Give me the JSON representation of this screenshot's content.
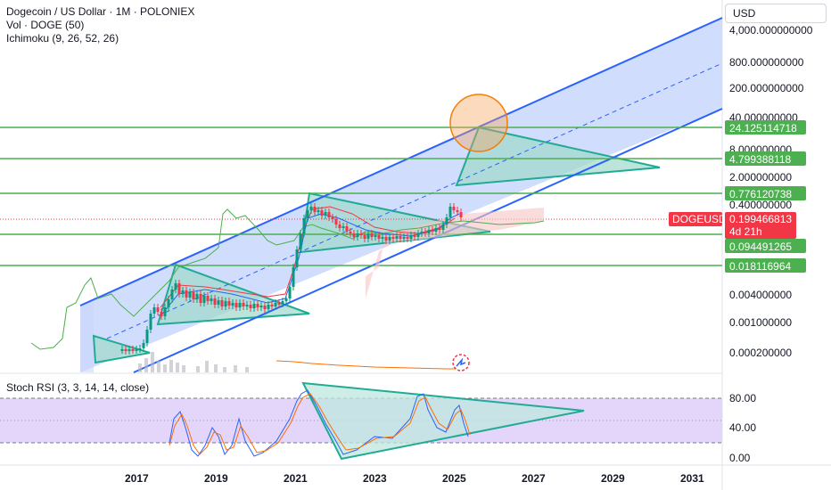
{
  "header": {
    "title": "Dogecoin / US Dollar · 1M · POLONIEX",
    "volume_label": "Vol · DOGE (50)",
    "ichimoku_label": "Ichimoku (9, 26, 52, 26)",
    "currency": "USD"
  },
  "price_axis": {
    "labels": [
      "4,000.000000000",
      "800.000000000",
      "200.000000000",
      "40.000000000",
      "8.000000000",
      "2.000000000",
      "0.400000000",
      "0.004000000",
      "0.001000000",
      "0.000200000"
    ]
  },
  "tags": [
    {
      "label": "24.125114718",
      "color": "#4caf50"
    },
    {
      "label": "4.799388118",
      "color": "#4caf50"
    },
    {
      "label": "0.776120738",
      "color": "#4caf50"
    },
    {
      "label": "0.094491265",
      "color": "#4caf50"
    },
    {
      "label": "0.018116964",
      "color": "#4caf50"
    }
  ],
  "symbol_tag": {
    "name": "DOGEUSD",
    "price": "0.199466813",
    "countdown": "4d 21h",
    "color": "#f23645"
  },
  "rsi": {
    "label": "Stoch RSI (3, 3, 14, 14, close)",
    "axis_labels": [
      "80.00",
      "40.00",
      "0.00"
    ]
  },
  "time_axis": {
    "labels": [
      "2017",
      "2019",
      "2021",
      "2023",
      "2025",
      "2027",
      "2029",
      "2031"
    ]
  },
  "colors": {
    "channel": "#2962ff",
    "channel_fill": "#c9d7fb",
    "levels": "#4caf50",
    "triangles": "#22ab94",
    "circle": "#f7a35c",
    "rsi_band": "#e1d0fb",
    "rsi_k": "#2962ff",
    "rsi_d": "#ff6d00"
  },
  "chart_data": {
    "type": "line",
    "symbol": "DOGEUSD",
    "scale": "log",
    "horizontal_levels": [
      24.125114718,
      4.799388118,
      0.776120738,
      0.094491265,
      0.018116964
    ],
    "last_price": 0.199466813,
    "rsi_bands": [
      80,
      20
    ]
  }
}
